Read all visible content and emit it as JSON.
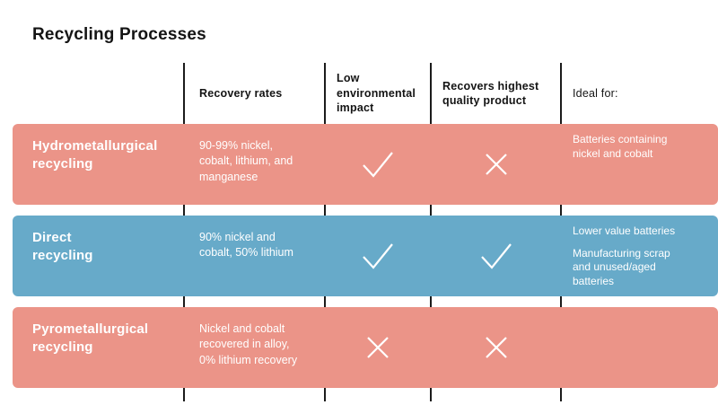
{
  "title": "Recycling Processes",
  "colors": {
    "salmon": "#eb9488",
    "blue": "#67aac9",
    "divider": "#1b1b1b",
    "header_text": "#141414",
    "row_text": "#ffffff"
  },
  "headers": [
    {
      "label": "Recovery rates"
    },
    {
      "label": "Low\nenvironmental\nimpact"
    },
    {
      "label": "Recovers highest\nquality product"
    },
    {
      "label": "Ideal for:"
    }
  ],
  "rows": [
    {
      "name": "Hydrometallurgical\nrecycling",
      "color": "salmon",
      "recovery": "90-99% nickel,\ncobalt, lithium, and\nmanganese",
      "low_impact": "check",
      "quality": "cross",
      "ideal": [
        "Batteries containing\nnickel and cobalt"
      ]
    },
    {
      "name": "Direct\nrecycling",
      "color": "blue",
      "recovery": "90% nickel and\ncobalt, 50% lithium",
      "low_impact": "check",
      "quality": "check",
      "ideal": [
        "Lower value batteries",
        "Manufacturing scrap\nand unused/aged\nbatteries"
      ]
    },
    {
      "name": "Pyrometallurgical\nrecycling",
      "color": "salmon",
      "recovery": "Nickel and cobalt\nrecovered in alloy,\n0% lithium recovery",
      "low_impact": "cross",
      "quality": "cross",
      "ideal": []
    }
  ]
}
